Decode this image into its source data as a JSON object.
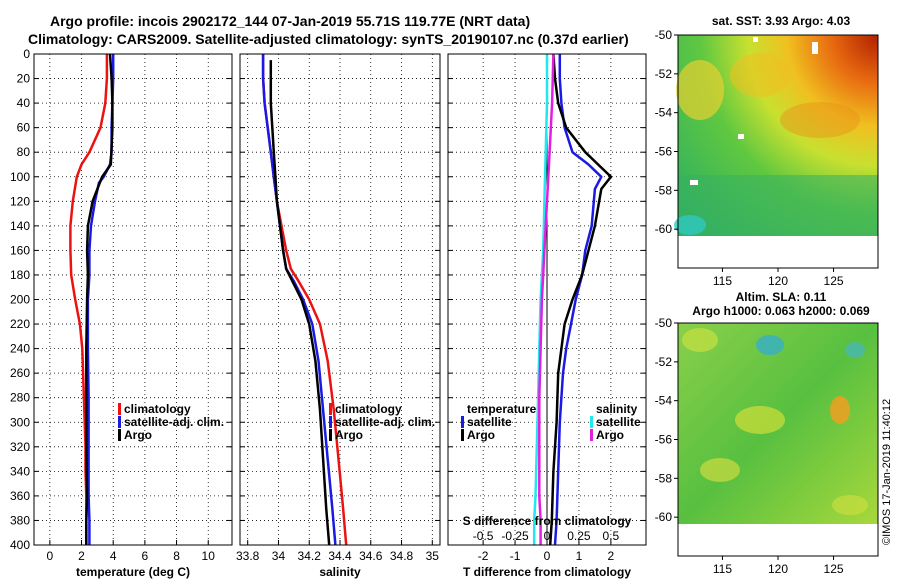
{
  "header": {
    "title_line1": "Argo profile: incois 2902172_144 07-Jan-2019 55.71S 119.77E (NRT data)",
    "title_line2": "Climatology: CARS2009. Satellite-adjusted climatology: synTS_20190107.nc (0.37d earlier)"
  },
  "colors": {
    "climatology": "#ee1111",
    "satellite": "#1a1ae6",
    "argo": "#000000",
    "sal_satellite": "#22e6f0",
    "sal_argo": "#e020e0"
  },
  "chart_data": [
    {
      "id": "temperature",
      "type": "line",
      "xlabel": "temperature (deg C)",
      "ylabel": "",
      "xlim": [
        -1,
        11.5
      ],
      "ylim": [
        400,
        0
      ],
      "xticks": [
        "0",
        "2",
        "4",
        "6",
        "8",
        "10"
      ],
      "xtick_values": [
        0,
        2,
        4,
        6,
        8,
        10
      ],
      "yticks": [
        "0",
        "20",
        "40",
        "60",
        "80",
        "100",
        "120",
        "140",
        "160",
        "180",
        "200",
        "220",
        "240",
        "260",
        "280",
        "300",
        "320",
        "340",
        "360",
        "380",
        "400"
      ],
      "ytick_values": [
        0,
        20,
        40,
        60,
        80,
        100,
        120,
        140,
        160,
        180,
        200,
        220,
        240,
        260,
        280,
        300,
        320,
        340,
        360,
        380,
        400
      ],
      "legend": [
        "climatology",
        "satellite-adj. clim.",
        "Argo"
      ],
      "legend_position": "middle-right",
      "series": [
        {
          "name": "climatology",
          "color": "#ee1111",
          "x": [
            3.6,
            3.6,
            3.5,
            3.2,
            2.5,
            2.0,
            1.7,
            1.45,
            1.3,
            1.3,
            1.35,
            1.6,
            1.9,
            2.05,
            2.1,
            2.15,
            2.2,
            2.25,
            2.25,
            2.3,
            2.3
          ],
          "y": [
            0,
            20,
            40,
            60,
            80,
            90,
            100,
            120,
            140,
            160,
            180,
            200,
            220,
            240,
            260,
            280,
            300,
            320,
            340,
            360,
            400
          ]
        },
        {
          "name": "satellite-adj. clim.",
          "color": "#1a1ae6",
          "x": [
            4.0,
            4.0,
            3.95,
            3.9,
            3.9,
            3.8,
            3.4,
            3.1,
            2.85,
            2.6,
            2.5,
            2.5,
            2.4,
            2.4,
            2.45,
            2.45,
            2.45,
            2.5,
            2.5
          ],
          "y": [
            0,
            20,
            40,
            60,
            80,
            90,
            100,
            105,
            120,
            140,
            160,
            180,
            200,
            240,
            280,
            320,
            360,
            380,
            400
          ]
        },
        {
          "name": "Argo",
          "color": "#000000",
          "x": [
            3.8,
            3.85,
            3.9,
            3.95,
            3.95,
            3.85,
            3.3,
            3.0,
            2.7,
            2.4,
            2.35,
            2.4,
            2.35,
            2.3,
            2.3,
            2.3,
            2.35,
            2.3,
            2.3
          ],
          "y": [
            0,
            10,
            20,
            40,
            60,
            90,
            100,
            110,
            120,
            140,
            160,
            180,
            200,
            240,
            280,
            320,
            360,
            380,
            400
          ]
        }
      ]
    },
    {
      "id": "salinity",
      "type": "line",
      "xlabel": "salinity",
      "ylabel": "",
      "xlim": [
        33.75,
        35.05
      ],
      "ylim": [
        400,
        0
      ],
      "xticks": [
        "33.8",
        "34",
        "34.2",
        "34.4",
        "34.6",
        "34.8",
        "35"
      ],
      "xtick_values": [
        33.8,
        34.0,
        34.2,
        34.4,
        34.6,
        34.8,
        35.0
      ],
      "legend": [
        "climatology",
        "satellite-adj. clim.",
        "Argo"
      ],
      "legend_position": "middle-right",
      "series": [
        {
          "name": "climatology",
          "color": "#ee1111",
          "x": [
            33.9,
            33.9,
            33.91,
            33.93,
            33.95,
            33.97,
            33.99,
            34.02,
            34.05,
            34.08,
            34.13,
            34.2,
            34.27,
            34.32,
            34.36,
            34.39,
            34.42,
            34.44
          ],
          "y": [
            0,
            20,
            40,
            60,
            80,
            100,
            120,
            140,
            160,
            175,
            185,
            200,
            220,
            250,
            290,
            330,
            370,
            400
          ]
        },
        {
          "name": "satellite-adj. clim.",
          "color": "#1a1ae6",
          "x": [
            33.9,
            33.9,
            33.91,
            33.93,
            33.95,
            33.97,
            33.99,
            34.01,
            34.03,
            34.05,
            34.1,
            34.16,
            34.22,
            34.26,
            34.29,
            34.32,
            34.35,
            34.37
          ],
          "y": [
            0,
            20,
            40,
            60,
            80,
            100,
            120,
            140,
            160,
            175,
            185,
            200,
            220,
            250,
            290,
            330,
            370,
            400
          ]
        },
        {
          "name": "Argo",
          "color": "#000000",
          "x": [
            33.95,
            33.95,
            33.95,
            33.96,
            33.97,
            33.98,
            33.99,
            34.01,
            34.03,
            34.05,
            34.09,
            34.15,
            34.2,
            34.24,
            34.27,
            34.29,
            34.31,
            34.33
          ],
          "y": [
            5,
            20,
            40,
            60,
            80,
            100,
            120,
            140,
            160,
            175,
            185,
            200,
            220,
            250,
            290,
            330,
            370,
            400
          ]
        }
      ]
    },
    {
      "id": "difference",
      "type": "line",
      "xlabel": "T difference from climatology",
      "xlabel_top": "S difference from climatology",
      "xlim": [
        -3.1,
        3.1
      ],
      "ylim": [
        400,
        0
      ],
      "xticks": [
        "-2",
        "-1",
        "0",
        "1",
        "2"
      ],
      "xtick_values": [
        -2,
        -1,
        0,
        1,
        2
      ],
      "top_ticks": [
        "-0.5",
        "-0.25",
        "0",
        "0.25",
        "0.5"
      ],
      "top_tick_values": [
        -0.5,
        -0.25,
        0,
        0.25,
        0.5
      ],
      "legend_groups": [
        {
          "heading": "temperature",
          "items": [
            "satellite",
            "Argo"
          ]
        },
        {
          "heading": "salinity",
          "items": [
            "satellite",
            "Argo"
          ]
        }
      ],
      "legend_position": "middle",
      "series": [
        {
          "name": "temperature satellite",
          "color": "#1a1ae6",
          "x": [
            0.4,
            0.4,
            0.45,
            0.55,
            0.8,
            1.3,
            1.7,
            1.5,
            1.4,
            1.2,
            1.1,
            0.9,
            0.75,
            0.6,
            0.5,
            0.4,
            0.35,
            0.3,
            0.25
          ],
          "y": [
            0,
            20,
            40,
            60,
            80,
            90,
            100,
            110,
            140,
            160,
            180,
            200,
            220,
            240,
            260,
            300,
            340,
            380,
            400
          ]
        },
        {
          "name": "temperature Argo",
          "color": "#000000",
          "x": [
            0.2,
            0.25,
            0.35,
            0.6,
            1.2,
            1.8,
            2.0,
            1.7,
            1.5,
            1.3,
            1.1,
            0.8,
            0.55,
            0.45,
            0.35,
            0.3,
            0.2,
            0.15,
            0.1
          ],
          "y": [
            0,
            20,
            40,
            60,
            80,
            95,
            100,
            110,
            140,
            160,
            180,
            200,
            220,
            240,
            260,
            300,
            340,
            380,
            400
          ]
        },
        {
          "name": "salinity satellite",
          "color": "#22e6f0",
          "x": [
            0.0,
            0.0,
            -0.01,
            -0.02,
            -0.03,
            -0.05,
            -0.06,
            -0.07,
            -0.08,
            -0.09,
            -0.1,
            -0.1
          ],
          "y": [
            0,
            40,
            80,
            120,
            160,
            200,
            240,
            280,
            320,
            360,
            380,
            400
          ]
        },
        {
          "name": "salinity Argo",
          "color": "#e020e0",
          "x": [
            0.05,
            0.04,
            0.02,
            0.0,
            -0.02,
            -0.03,
            -0.04,
            -0.05,
            -0.06,
            -0.06,
            -0.06,
            -0.06,
            -0.05,
            -0.05
          ],
          "y": [
            0,
            40,
            80,
            120,
            160,
            180,
            200,
            240,
            280,
            320,
            340,
            360,
            380,
            400
          ]
        }
      ]
    },
    {
      "id": "map_sst",
      "type": "heatmap",
      "title": "sat. SST: 3.93 Argo: 4.03",
      "xticks": [
        "115",
        "120",
        "125"
      ],
      "xtick_values": [
        115,
        120,
        125
      ],
      "yticks": [
        "-50",
        "-52",
        "-54",
        "-56",
        "-58",
        "-60"
      ],
      "ytick_values": [
        -50,
        -52,
        -54,
        -56,
        -58,
        -60
      ],
      "xlim": [
        111,
        129
      ],
      "ylim": [
        -62,
        -50
      ],
      "data_bottom": -60
    },
    {
      "id": "map_sla",
      "type": "heatmap",
      "title": "Altim. SLA: 0.11",
      "subtitle": "Argo h1000: 0.063 h2000: 0.069",
      "xticks": [
        "115",
        "120",
        "125"
      ],
      "xtick_values": [
        115,
        120,
        125
      ],
      "yticks": [
        "-50",
        "-52",
        "-54",
        "-56",
        "-58",
        "-60"
      ],
      "ytick_values": [
        -50,
        -52,
        -54,
        -56,
        -58,
        -60
      ],
      "xlim": [
        111,
        129
      ],
      "ylim": [
        -62,
        -50
      ],
      "data_bottom": -60
    }
  ],
  "credit": "©IMOS 17-Jan-2019 11:40:12"
}
